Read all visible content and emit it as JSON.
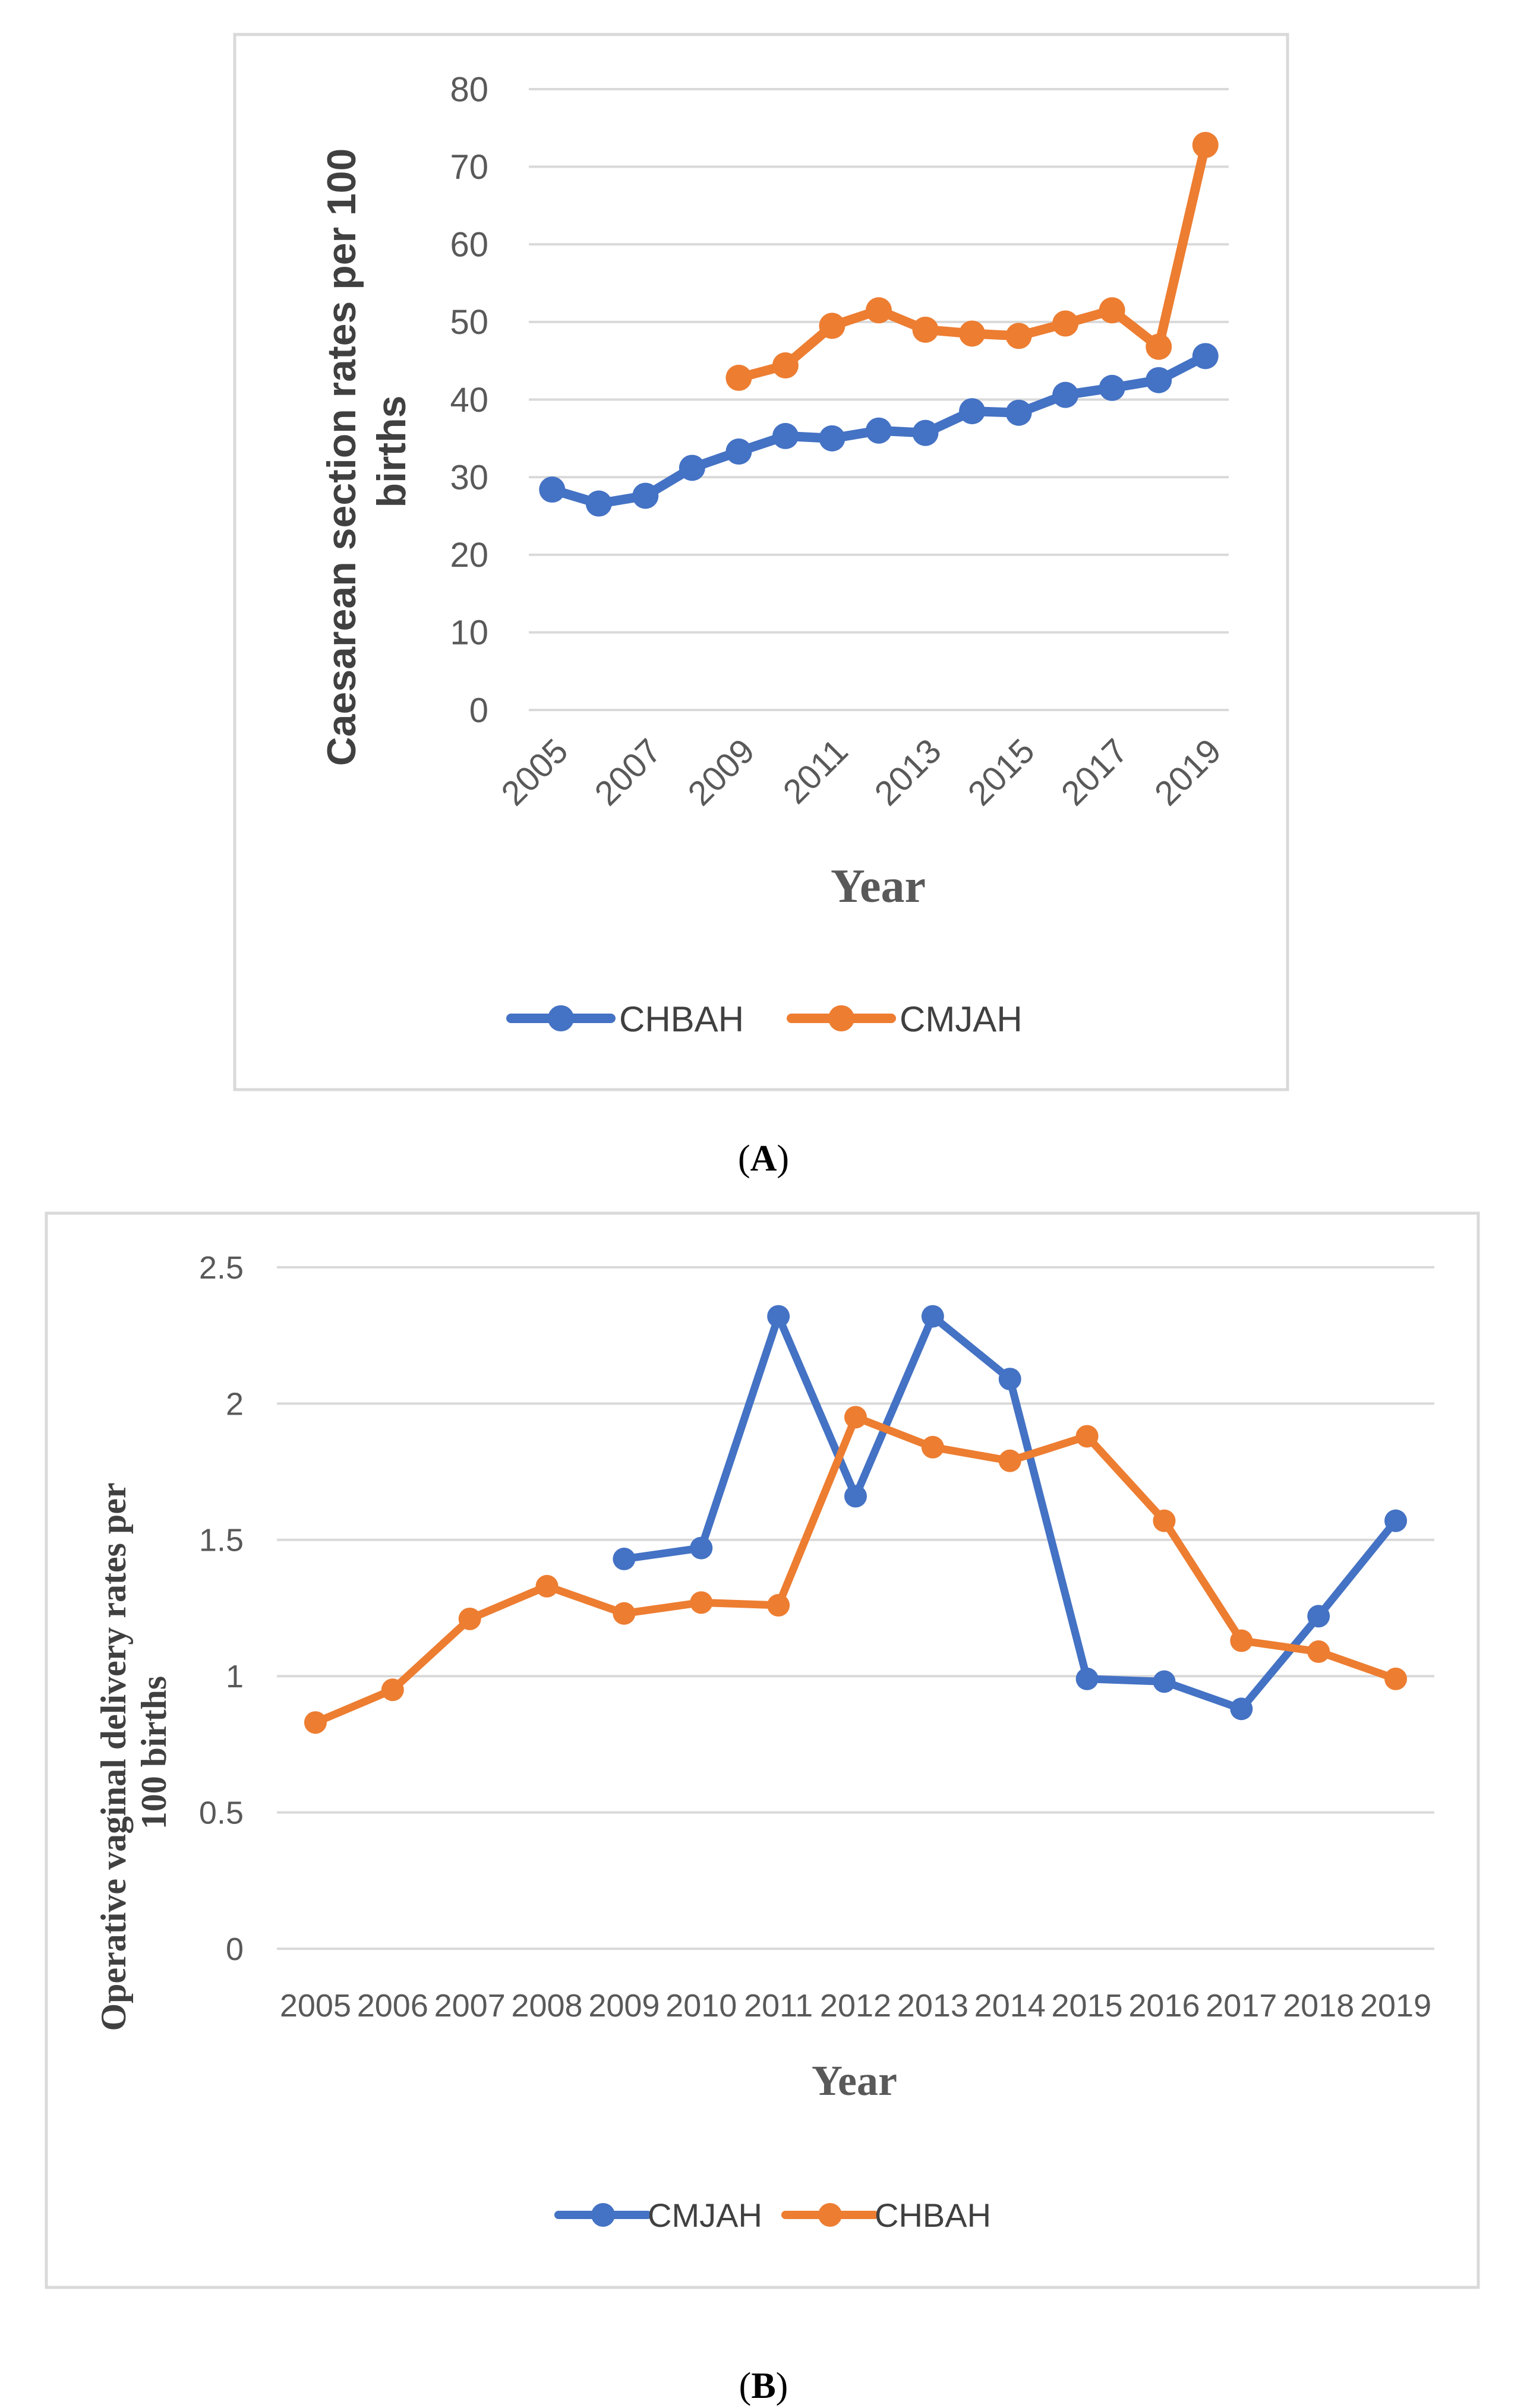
{
  "chart_data": [
    {
      "type": "line",
      "panel": "A",
      "caption_open": "(",
      "caption_letter": "A",
      "caption_close": ")",
      "title": "",
      "xlabel": "Year",
      "ylabel": "Caesarean section rates per 100 births",
      "ylabel_lines": [
        "Caesarean section rates per 100",
        "births"
      ],
      "ylim": [
        0,
        80
      ],
      "yticks": [
        0,
        10,
        20,
        30,
        40,
        50,
        60,
        70,
        80
      ],
      "x": [
        2005,
        2006,
        2007,
        2008,
        2009,
        2010,
        2011,
        2012,
        2013,
        2014,
        2015,
        2016,
        2017,
        2018,
        2019
      ],
      "xtick_labels": [
        "2005",
        "2007",
        "2009",
        "2011",
        "2013",
        "2015",
        "2017",
        "2019"
      ],
      "legend_position": "bottom",
      "grid": true,
      "series": [
        {
          "name": "CHBAH",
          "color": "#4472C4",
          "values": [
            28.4,
            26.6,
            27.6,
            31.2,
            33.3,
            35.3,
            35.0,
            36.0,
            35.7,
            38.5,
            38.3,
            40.6,
            41.5,
            42.5,
            45.6
          ]
        },
        {
          "name": "CMJAH",
          "color": "#ED7D31",
          "values": [
            null,
            null,
            null,
            null,
            42.8,
            44.4,
            49.5,
            51.5,
            49.0,
            48.5,
            48.2,
            49.8,
            51.5,
            46.8,
            72.8
          ]
        }
      ]
    },
    {
      "type": "line",
      "panel": "B",
      "caption_open": "(",
      "caption_letter": "B",
      "caption_close": ")",
      "title": "",
      "xlabel": "Year",
      "ylabel": "Operative vaginal delivery rates per 100 births",
      "ylabel_lines": [
        "Operative vaginal delivery rates per",
        "100 births"
      ],
      "ylim": [
        0,
        2.5
      ],
      "yticks": [
        0,
        0.5,
        1,
        1.5,
        2,
        2.5
      ],
      "ytick_labels": [
        "0",
        "0.5",
        "1",
        "1.5",
        "2",
        "2.5"
      ],
      "x": [
        2005,
        2006,
        2007,
        2008,
        2009,
        2010,
        2011,
        2012,
        2013,
        2014,
        2015,
        2016,
        2017,
        2018,
        2019
      ],
      "xtick_labels": [
        "2005",
        "2006",
        "2007",
        "2008",
        "2009",
        "2010",
        "2011",
        "2012",
        "2013",
        "2014",
        "2015",
        "2016",
        "2017",
        "2018",
        "2019"
      ],
      "legend_position": "bottom",
      "grid": true,
      "series": [
        {
          "name": "CMJAH",
          "color": "#4472C4",
          "values": [
            null,
            null,
            null,
            null,
            1.43,
            1.47,
            2.32,
            1.66,
            2.32,
            2.09,
            0.99,
            0.98,
            0.88,
            1.22,
            1.57
          ]
        },
        {
          "name": "CHBAH",
          "color": "#ED7D31",
          "values": [
            0.83,
            0.95,
            1.21,
            1.33,
            1.23,
            1.27,
            1.26,
            1.95,
            1.84,
            1.79,
            1.88,
            1.57,
            1.13,
            1.09,
            0.99
          ]
        }
      ]
    }
  ]
}
